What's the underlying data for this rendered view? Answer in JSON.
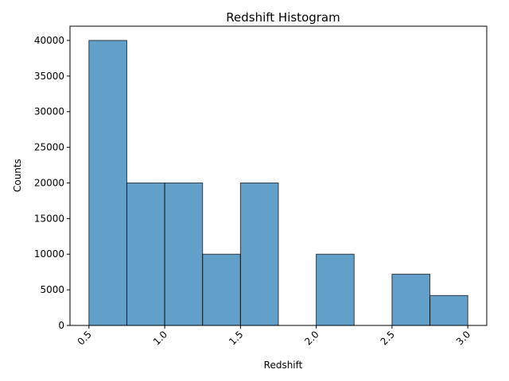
{
  "chart_data": {
    "type": "bar",
    "title": "Redshift Histogram",
    "xlabel": "Redshift",
    "ylabel": "Counts",
    "xlim": [
      0.375,
      3.125
    ],
    "ylim": [
      0,
      42000
    ],
    "xticks": [
      "0.5",
      "1.0",
      "1.5",
      "2.0",
      "2.5",
      "3.0"
    ],
    "yticks": [
      "0",
      "5000",
      "10000",
      "15000",
      "20000",
      "25000",
      "30000",
      "35000",
      "40000"
    ],
    "bin_width": 0.25,
    "bins": [
      {
        "start": 0.5,
        "value": 40000
      },
      {
        "start": 0.75,
        "value": 20000
      },
      {
        "start": 1.0,
        "value": 20000
      },
      {
        "start": 1.25,
        "value": 10000
      },
      {
        "start": 1.5,
        "value": 20000
      },
      {
        "start": 1.75,
        "value": 0
      },
      {
        "start": 2.0,
        "value": 10000
      },
      {
        "start": 2.25,
        "value": 0
      },
      {
        "start": 2.5,
        "value": 7200
      },
      {
        "start": 2.75,
        "value": 4200
      }
    ],
    "grid": false,
    "bar_color": "#1f77b4",
    "bar_edge_color": "#000000"
  }
}
